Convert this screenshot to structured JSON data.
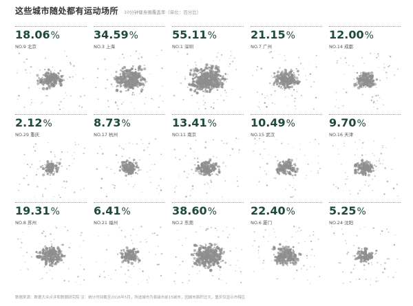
{
  "header": {
    "title": "这些城市随处都有运动场所",
    "subtitle": "10分钟健身圈覆盖率（单位：百分比）"
  },
  "footnote": "数据来源：数据大众点评和数据研究院  注：统计时间截至2016年5月，所选城市为县级市前15城市，因城市面积过大，重庆仅显示市辖区",
  "colors": {
    "value_text": "#1e4a3c",
    "map_dots": "#8e8e8e",
    "rule": "#9a9a9a"
  },
  "chart_data": {
    "type": "table",
    "unit": "%",
    "cities": [
      {
        "value_text": "18.06",
        "rank_label": "NO.9 北京",
        "rank": 9,
        "value": 18.06
      },
      {
        "value_text": "34.59",
        "rank_label": "NO.3 上海",
        "rank": 3,
        "value": 34.59
      },
      {
        "value_text": "55.11",
        "rank_label": "NO.1 深圳",
        "rank": 1,
        "value": 55.11
      },
      {
        "value_text": "21.15",
        "rank_label": "NO.7 广州",
        "rank": 7,
        "value": 21.15
      },
      {
        "value_text": "12.00",
        "rank_label": "NO.14 成都",
        "rank": 14,
        "value": 12.0
      },
      {
        "value_text": "2.12",
        "rank_label": "NO.29 重庆",
        "rank": 29,
        "value": 2.12
      },
      {
        "value_text": "8.73",
        "rank_label": "NO.17 杭州",
        "rank": 17,
        "value": 8.73
      },
      {
        "value_text": "13.41",
        "rank_label": "NO.11 南京",
        "rank": 11,
        "value": 13.41
      },
      {
        "value_text": "10.49",
        "rank_label": "NO.15 武汉",
        "rank": 15,
        "value": 10.49
      },
      {
        "value_text": "9.70",
        "rank_label": "NO.16 天津",
        "rank": 16,
        "value": 9.7
      },
      {
        "value_text": "19.31",
        "rank_label": "NO.8 苏州",
        "rank": 8,
        "value": 19.31
      },
      {
        "value_text": "6.41",
        "rank_label": "NO.21 福州",
        "rank": 21,
        "value": 6.41
      },
      {
        "value_text": "38.60",
        "rank_label": "NO.2 东莞",
        "rank": 2,
        "value": 38.6
      },
      {
        "value_text": "22.40",
        "rank_label": "NO.6 厦门",
        "rank": 6,
        "value": 22.4
      },
      {
        "value_text": "5.25",
        "rank_label": "NO.24 沈阳",
        "rank": 24,
        "value": 5.25
      }
    ]
  }
}
